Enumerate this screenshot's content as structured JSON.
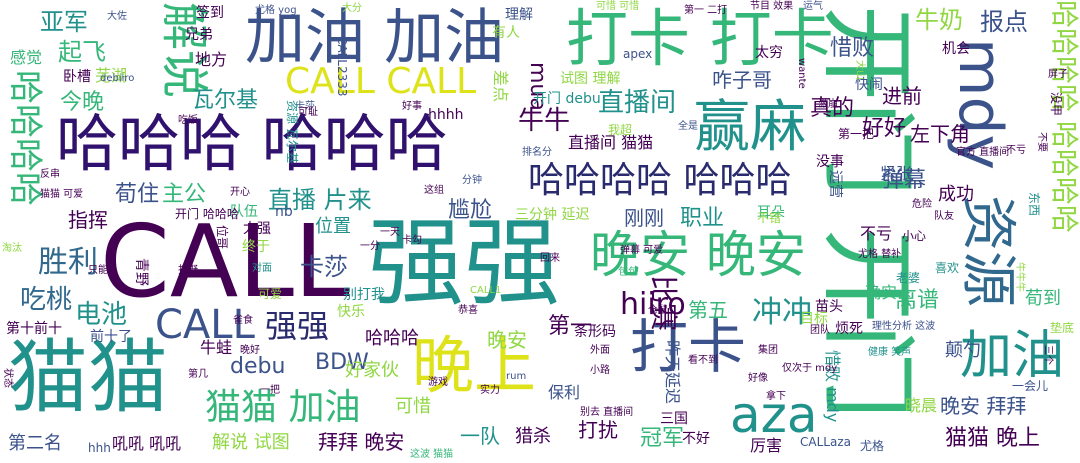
{
  "image": {
    "kind": "word-cloud"
  },
  "palette": {
    "purple": "#440154",
    "indigo": "#3b528b",
    "blue": "#31688e",
    "teal": "#21918c",
    "green": "#35b779",
    "lime": "#90d743",
    "yellow": "#dde318",
    "lightgreen": "#6ece58"
  },
  "words": [
    {
      "text": "CALL",
      "color": "#440154"
    },
    {
      "text": "强强",
      "color": "#21918c"
    },
    {
      "text": "开门 开门",
      "color": "#35b779"
    },
    {
      "text": "猫猫",
      "color": "#21918c"
    },
    {
      "text": "哈哈哈 哈哈哈",
      "color": "#30126e"
    },
    {
      "text": "加油 加油",
      "color": "#3b528b"
    },
    {
      "text": "打卡 打卡",
      "color": "#35b779"
    },
    {
      "text": "赢麻",
      "color": "#21918c"
    },
    {
      "text": "mdy",
      "color": "#3b528b"
    },
    {
      "text": "资源",
      "color": "#31688e"
    },
    {
      "text": "晚安 晚安",
      "color": "#35b779"
    },
    {
      "text": "晚上",
      "color": "#dde318"
    },
    {
      "text": "打卡",
      "color": "#3b528b"
    },
    {
      "text": "加油",
      "color": "#21918c"
    },
    {
      "text": "aza",
      "color": "#21918c"
    },
    {
      "text": "解说",
      "color": "#35b779"
    },
    {
      "text": "CALL CALL",
      "color": "#dde318"
    },
    {
      "text": "哈哈哈哈 哈哈哈",
      "color": "#2a2a6e"
    },
    {
      "text": "哈哈哈哈 哈哈哈哈",
      "color": "#90d743"
    },
    {
      "text": "哈哈哈哈",
      "color": "#35b779"
    },
    {
      "text": "CALL",
      "color": "#3b528b"
    },
    {
      "text": "强强",
      "color": "#2a2a6e"
    },
    {
      "text": "hiiro",
      "color": "#440154"
    },
    {
      "text": "猫猫 加油",
      "color": "#35b779"
    },
    {
      "text": "冲冲",
      "color": "#21918c"
    },
    {
      "text": "胜利",
      "color": "#31688e"
    },
    {
      "text": "卡莎",
      "color": "#3b528b"
    },
    {
      "text": "吃桃",
      "color": "#31688e"
    },
    {
      "text": "电池",
      "color": "#21918c"
    },
    {
      "text": "直播间",
      "color": "#21918c"
    },
    {
      "text": "牛牛",
      "color": "#440154"
    },
    {
      "text": "比赛",
      "color": "#440154"
    },
    {
      "text": "直播 片来",
      "color": "#21918c"
    },
    {
      "text": "亚军",
      "color": "#21918c"
    },
    {
      "text": "起飞",
      "color": "#35b779"
    },
    {
      "text": "瓦尔基",
      "color": "#21918c"
    },
    {
      "text": "今晚",
      "color": "#35b779"
    },
    {
      "text": "荀住",
      "color": "#3b528b"
    },
    {
      "text": "主公",
      "color": "#35b779"
    },
    {
      "text": "指挥",
      "color": "#440154"
    },
    {
      "text": "尴尬",
      "color": "#3b528b"
    },
    {
      "text": "职业",
      "color": "#21918c"
    },
    {
      "text": "弹幕",
      "color": "#3b528b"
    },
    {
      "text": "成功",
      "color": "#440154"
    },
    {
      "text": "真的",
      "color": "#440154"
    },
    {
      "text": "好好",
      "color": "#440154"
    },
    {
      "text": "进前",
      "color": "#440154"
    },
    {
      "text": "牛奶",
      "color": "#90d743"
    },
    {
      "text": "报点",
      "color": "#3b528b"
    },
    {
      "text": "惜败",
      "color": "#3b528b"
    },
    {
      "text": "咋子哥",
      "color": "#3b528b"
    },
    {
      "text": "左下角",
      "color": "#440154"
    },
    {
      "text": "紧张",
      "color": "#3b528b"
    },
    {
      "text": "刚刚",
      "color": "#3b528b"
    },
    {
      "text": "不亏",
      "color": "#440154"
    },
    {
      "text": "位置",
      "color": "#21918c"
    },
    {
      "text": "debu",
      "color": "#3b528b"
    },
    {
      "text": "BDW",
      "color": "#3b528b"
    },
    {
      "text": "哈哈哈",
      "color": "#440154"
    },
    {
      "text": "好家伙",
      "color": "#90d743"
    },
    {
      "text": "晚安",
      "color": "#90d743"
    },
    {
      "text": "第一",
      "color": "#440154"
    },
    {
      "text": "第五",
      "color": "#35b779"
    },
    {
      "text": "离谱",
      "color": "#35b779"
    },
    {
      "text": "确实",
      "color": "#35b779"
    },
    {
      "text": "颠勺",
      "color": "#3b528b"
    },
    {
      "text": "荀到",
      "color": "#35b779"
    },
    {
      "text": "可惜",
      "color": "#90d743"
    },
    {
      "text": "猫猫 晚上",
      "color": "#440154"
    },
    {
      "text": "晚安 拜拜",
      "color": "#3b528b"
    },
    {
      "text": "拜拜 晚安",
      "color": "#440154"
    },
    {
      "text": "一队",
      "color": "#21918c"
    },
    {
      "text": "猎杀",
      "color": "#440154"
    },
    {
      "text": "打扰",
      "color": "#440154"
    },
    {
      "text": "冠军",
      "color": "#35b779"
    },
    {
      "text": "厉害",
      "color": "#440154"
    },
    {
      "text": "第二名",
      "color": "#3b528b"
    },
    {
      "text": "吼吼 吼吼",
      "color": "#440154"
    },
    {
      "text": "解说 试图",
      "color": "#90d743"
    },
    {
      "text": "牛蛙",
      "color": "#440154"
    },
    {
      "text": "第十前十",
      "color": "#440154"
    },
    {
      "text": "前十了",
      "color": "#3b528b"
    },
    {
      "text": "mua",
      "color": "#440154"
    },
    {
      "text": "惜败 mdy",
      "color": "#21918c"
    },
    {
      "text": "昨天延迟",
      "color": "#3b528b"
    },
    {
      "text": "保利",
      "color": "#3b528b"
    },
    {
      "text": "晓晨",
      "color": "#90d743"
    },
    {
      "text": "三国",
      "color": "#440154"
    },
    {
      "text": "不好",
      "color": "#440154"
    },
    {
      "text": "尤格",
      "color": "#3b528b"
    },
    {
      "text": "感觉",
      "color": "#35b779"
    },
    {
      "text": "地方",
      "color": "#440154"
    },
    {
      "text": "兄弟",
      "color": "#440154"
    },
    {
      "text": "签到",
      "color": "#440154"
    },
    {
      "text": "芜湖",
      "color": "#90d743"
    },
    {
      "text": "卧槽",
      "color": "#440154"
    },
    {
      "text": "理解",
      "color": "#3b528b"
    },
    {
      "text": "有人",
      "color": "#90d743"
    },
    {
      "text": "太穷",
      "color": "#440154"
    },
    {
      "text": "机会",
      "color": "#440154"
    },
    {
      "text": "快闹",
      "color": "#3b528b"
    },
    {
      "text": "没事",
      "color": "#440154"
    },
    {
      "text": "远营",
      "color": "#3b528b"
    },
    {
      "text": "耳朵",
      "color": "#35b779"
    },
    {
      "text": "不错",
      "color": "#90d743"
    },
    {
      "text": "小心",
      "color": "#440154"
    },
    {
      "text": "三分钟 延迟",
      "color": "#90d743"
    },
    {
      "text": "开门 debu",
      "color": "#21918c"
    },
    {
      "text": "试图 理解",
      "color": "#90d743"
    },
    {
      "text": "直播间 猫猫",
      "color": "#440154"
    },
    {
      "text": "队伍",
      "color": "#35b779"
    },
    {
      "text": "开门 哈哈哈",
      "color": "#440154"
    },
    {
      "text": "nb",
      "color": "#3b528b"
    },
    {
      "text": "终于",
      "color": "#90d743"
    },
    {
      "text": "太强",
      "color": "#440154"
    },
    {
      "text": "青野",
      "color": "#440154"
    },
    {
      "text": "位哥",
      "color": "#440154"
    },
    {
      "text": "快乐",
      "color": "#90d743"
    },
    {
      "text": "别打我",
      "color": "#21918c"
    },
    {
      "text": "苗头",
      "color": "#440154"
    },
    {
      "text": "目标",
      "color": "#90d743"
    },
    {
      "text": "条形码",
      "color": "#440154"
    },
    {
      "text": "差点",
      "color": "#90d743"
    },
    {
      "text": "我超",
      "color": "#90d743"
    },
    {
      "text": "喜欢",
      "color": "#21918c"
    },
    {
      "text": "老婆",
      "color": "#21918c"
    },
    {
      "text": "一会儿",
      "color": "#3b528b"
    },
    {
      "text": "垫底",
      "color": "#90d743"
    },
    {
      "text": "烦死",
      "color": "#440154"
    },
    {
      "text": "团队",
      "color": "#440154"
    },
    {
      "text": "理性分析 这波",
      "color": "#3b528b"
    },
    {
      "text": "健康 笑声",
      "color": "#21918c"
    },
    {
      "text": "可爱",
      "color": "#90d743"
    },
    {
      "text": "可惜 可惜",
      "color": "#90d743"
    },
    {
      "text": "第一 二打",
      "color": "#440154"
    },
    {
      "text": "节目 效果",
      "color": "#440154"
    },
    {
      "text": "运气",
      "color": "#3b528b"
    },
    {
      "text": "apex",
      "color": "#3b528b"
    },
    {
      "text": "hhhh",
      "color": "#440154"
    },
    {
      "text": "hhh",
      "color": "#3b528b"
    },
    {
      "text": "CALLaza",
      "color": "#3b528b"
    },
    {
      "text": "CALL2333",
      "color": "#3b528b"
    },
    {
      "text": "尤格 yog",
      "color": "#3b528b"
    },
    {
      "text": "大分",
      "color": "#90d743"
    },
    {
      "text": "大佐",
      "color": "#3b528b"
    },
    {
      "text": "卡莎",
      "color": "#3b528b"
    },
    {
      "text": "debiiro",
      "color": "#3b528b"
    },
    {
      "text": "第一把",
      "color": "#440154"
    },
    {
      "text": "全是",
      "color": "#3b528b"
    },
    {
      "text": "排名分",
      "color": "#3b528b"
    },
    {
      "text": "分钟",
      "color": "#3b528b"
    },
    {
      "text": "这组",
      "color": "#440154"
    },
    {
      "text": "开心",
      "color": "#440154"
    },
    {
      "text": "猫猫 可爱",
      "color": "#440154"
    },
    {
      "text": "反串",
      "color": "#440154"
    },
    {
      "text": "淘汰",
      "color": "#90d743"
    },
    {
      "text": "对面",
      "color": "#21918c"
    },
    {
      "text": "雀食",
      "color": "#440154"
    },
    {
      "text": "晚好",
      "color": "#440154"
    },
    {
      "text": "第几",
      "color": "#440154"
    },
    {
      "text": "包包",
      "color": "#35b779"
    },
    {
      "text": "一把",
      "color": "#440154"
    },
    {
      "text": "游戏",
      "color": "#440154"
    },
    {
      "text": "CALL1",
      "color": "#90d743"
    },
    {
      "text": "实力",
      "color": "#440154"
    },
    {
      "text": "外面",
      "color": "#440154"
    },
    {
      "text": "小路",
      "color": "#440154"
    },
    {
      "text": "别去 直播间",
      "color": "#440154"
    },
    {
      "text": "这波 猫猫",
      "color": "#35b779"
    },
    {
      "text": "拿下",
      "color": "#440154"
    },
    {
      "text": "好像",
      "color": "#440154"
    },
    {
      "text": "仅次于 mdy",
      "color": "#440154"
    },
    {
      "text": "看不到",
      "color": "#440154"
    },
    {
      "text": "牛牛牛",
      "color": "#90d743"
    },
    {
      "text": "东西",
      "color": "#21918c"
    },
    {
      "text": "尤格 替补",
      "color": "#440154"
    },
    {
      "text": "官方 直播间",
      "color": "#440154"
    },
    {
      "text": "危险",
      "color": "#440154"
    },
    {
      "text": "屏子",
      "color": "#440154"
    },
    {
      "text": "没甲",
      "color": "#440154"
    },
    {
      "text": "不要",
      "color": "#440154"
    },
    {
      "text": "不亏",
      "color": "#440154"
    },
    {
      "text": "三个",
      "color": "#440154"
    },
    {
      "text": "恭喜",
      "color": "#440154"
    },
    {
      "text": "好事",
      "color": "#440154"
    },
    {
      "text": "大山",
      "color": "#90d743"
    },
    {
      "text": "滋崩",
      "color": "#440154"
    },
    {
      "text": "wante",
      "color": "#440154"
    },
    {
      "text": "资源 瓦尔基",
      "color": "#21918c"
    },
    {
      "text": "一天",
      "color": "#440154"
    },
    {
      "text": "rum",
      "color": "#3b528b"
    },
    {
      "text": "状态",
      "color": "#440154"
    },
    {
      "text": "队友",
      "color": "#440154"
    },
    {
      "text": "仓鼠",
      "color": "#440154"
    },
    {
      "text": "集团",
      "color": "#440154"
    },
    {
      "text": "吃饭",
      "color": "#440154"
    },
    {
      "text": "打野",
      "color": "#440154"
    },
    {
      "text": "只能",
      "color": "#440154"
    },
    {
      "text": "可耻",
      "color": "#440154"
    },
    {
      "text": "卡勾",
      "color": "#440154"
    },
    {
      "text": "一分",
      "color": "#440154"
    },
    {
      "text": "回来",
      "color": "#440154"
    },
    {
      "text": "弹幕 可爱",
      "color": "#440154"
    },
    {
      "text": "下饭",
      "color": "#440154"
    }
  ]
}
